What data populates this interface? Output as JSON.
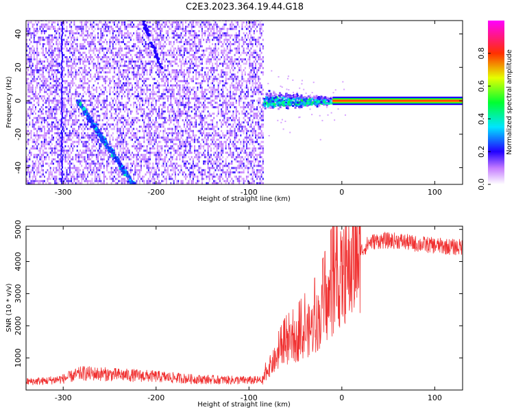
{
  "chart_data": [
    {
      "type": "heatmap",
      "title": "C2E3.2023.364.19.44.G18",
      "xlabel": "Height of straight line (km)",
      "ylabel": "Frequency (Hz)",
      "xlim": [
        -340,
        130
      ],
      "ylim": [
        -50,
        48
      ],
      "xticks": [
        -300,
        -200,
        -100,
        0,
        100
      ],
      "yticks": [
        40,
        20,
        0,
        -20,
        -40
      ],
      "colorbar": {
        "label": "Normalized spectral amplitude",
        "range": [
          0.0,
          1.0
        ],
        "ticks": [
          0.0,
          0.2,
          0.4,
          0.6,
          0.8
        ]
      },
      "features": {
        "noise_region_x": [
          -340,
          -85
        ],
        "descending_track": {
          "x": [
            -285,
            -225
          ],
          "y": [
            0,
            -50
          ]
        },
        "faint_upper_track": {
          "x": [
            -215,
            -195
          ],
          "y": [
            48,
            20
          ]
        },
        "zero_line_start_x": -85,
        "high_amplitude_zero_line_x": [
          -15,
          130
        ]
      }
    },
    {
      "type": "line",
      "xlabel": "Height of straight line (km)",
      "ylabel": "SNR (10 * v/v)",
      "xlim": [
        -340,
        130
      ],
      "ylim": [
        0,
        5100
      ],
      "xticks": [
        -300,
        -200,
        -100,
        0,
        100
      ],
      "yticks": [
        1000,
        2000,
        3000,
        4000,
        5000
      ],
      "color": "#f03030",
      "series": [
        {
          "x": [
            -340,
            -320,
            -300,
            -280,
            -260,
            -240,
            -220,
            -200,
            -180,
            -160,
            -140,
            -120,
            -100,
            -85,
            -80,
            -70,
            -60,
            -50,
            -40,
            -30,
            -20,
            -10,
            0,
            10,
            20,
            30,
            40,
            60,
            80,
            100,
            120,
            130
          ],
          "y": [
            260,
            280,
            350,
            520,
            500,
            470,
            450,
            420,
            380,
            340,
            320,
            310,
            300,
            300,
            650,
            1000,
            1350,
            1500,
            1750,
            2000,
            2400,
            3000,
            3500,
            3800,
            4300,
            4600,
            4650,
            4650,
            4550,
            4500,
            4450,
            4450
          ]
        }
      ]
    }
  ]
}
